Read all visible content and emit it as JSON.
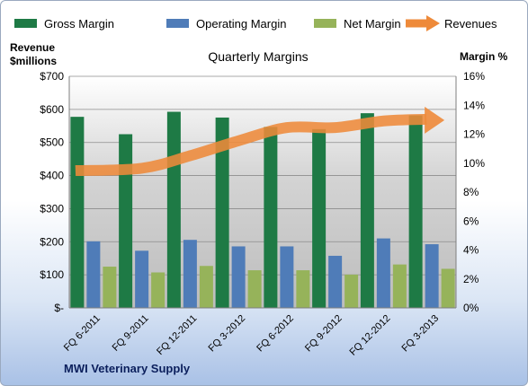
{
  "chart_data": {
    "type": "bar",
    "title": "Quarterly Margins",
    "company": "MWI Veterinary Supply",
    "left_axis": {
      "label_line1": "Revenue",
      "label_line2": "$millions",
      "ticks": [
        "$-",
        "$100",
        "$200",
        "$300",
        "$400",
        "$500",
        "$600",
        "$700"
      ],
      "ylim": [
        0,
        700
      ]
    },
    "right_axis": {
      "label": "Margin  %",
      "ticks": [
        "0%",
        "2%",
        "4%",
        "6%",
        "8%",
        "10%",
        "12%",
        "14%",
        "16%"
      ],
      "ylim": [
        0,
        16
      ]
    },
    "categories": [
      "FQ 6-2011",
      "FQ 9-2011",
      "FQ 12-2011",
      "FQ 3-2012",
      "FQ 6-2012",
      "FQ 9-2012",
      "FQ 12-2012",
      "FQ 3-2013"
    ],
    "series": [
      {
        "name": "Gross Margin",
        "axis": "right",
        "color": "#1e7a45",
        "values": [
          13.2,
          12.0,
          13.55,
          13.15,
          12.5,
          12.35,
          13.45,
          13.3
        ]
      },
      {
        "name": "Operating Margin",
        "axis": "right",
        "color": "#4f7cb8",
        "values": [
          4.6,
          3.95,
          4.7,
          4.25,
          4.25,
          3.6,
          4.8,
          4.4
        ]
      },
      {
        "name": "Net Margin",
        "axis": "right",
        "color": "#96b35a",
        "values": [
          2.85,
          2.45,
          2.9,
          2.6,
          2.6,
          2.3,
          3.0,
          2.7
        ]
      },
      {
        "name": "Revenues",
        "axis": "left",
        "type": "line",
        "color": "#ee8a3a",
        "values": [
          415,
          422,
          460,
          505,
          545,
          545,
          565,
          570
        ]
      }
    ],
    "grid": true,
    "legend": "top"
  }
}
